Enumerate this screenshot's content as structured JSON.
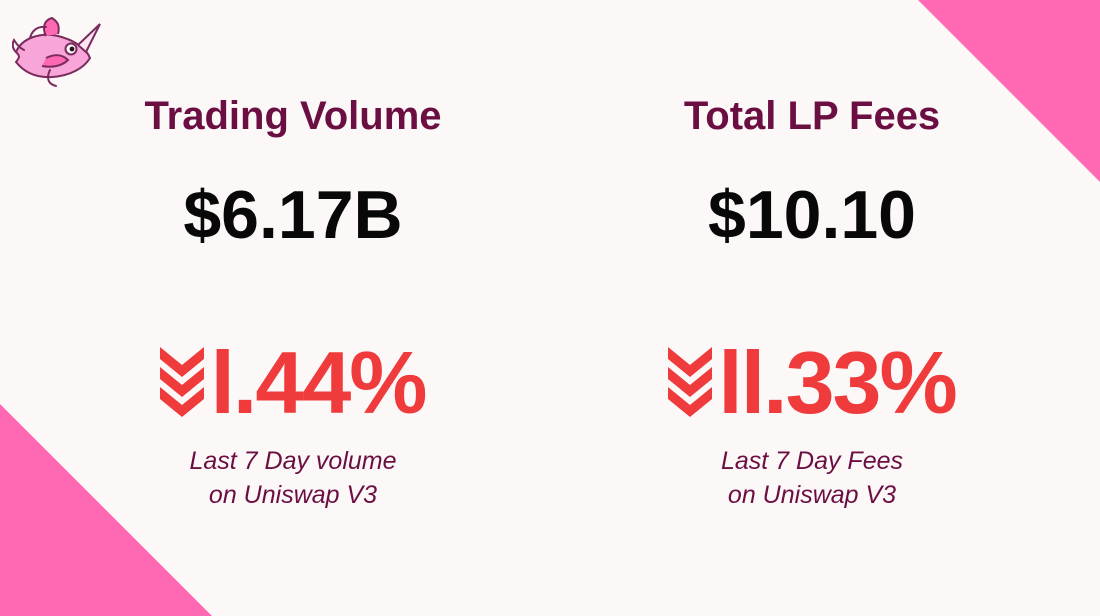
{
  "colors": {
    "background": "#fdf8f8",
    "accent_pink": "#ff69b4",
    "title": "#6b0f42",
    "value": "#080808",
    "decline": "#ef3b3b"
  },
  "logo": {
    "icon": "unicorn-fish-icon"
  },
  "metrics": [
    {
      "title": "Trading Volume",
      "value": "$6.17B",
      "change": {
        "icon": "double-chevron-down-icon",
        "value": "l.44%"
      },
      "caption_lines": [
        "Last 7 Day volume",
        "on Uniswap V3"
      ]
    },
    {
      "title": "Total LP Fees",
      "value": "$10.10",
      "change": {
        "icon": "double-chevron-down-icon",
        "value": "ll.33%"
      },
      "caption_lines": [
        "Last 7 Day Fees",
        "on Uniswap V3"
      ]
    }
  ]
}
